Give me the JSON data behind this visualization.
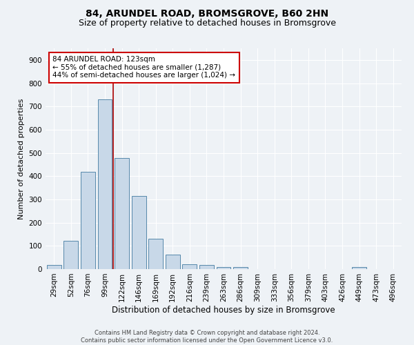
{
  "title1": "84, ARUNDEL ROAD, BROMSGROVE, B60 2HN",
  "title2": "Size of property relative to detached houses in Bromsgrove",
  "xlabel": "Distribution of detached houses by size in Bromsgrove",
  "ylabel": "Number of detached properties",
  "categories": [
    "29sqm",
    "52sqm",
    "76sqm",
    "99sqm",
    "122sqm",
    "146sqm",
    "169sqm",
    "192sqm",
    "216sqm",
    "239sqm",
    "263sqm",
    "286sqm",
    "309sqm",
    "333sqm",
    "356sqm",
    "379sqm",
    "403sqm",
    "426sqm",
    "449sqm",
    "473sqm",
    "496sqm"
  ],
  "values": [
    18,
    122,
    418,
    730,
    478,
    315,
    130,
    63,
    22,
    18,
    10,
    8,
    0,
    0,
    0,
    0,
    0,
    0,
    8,
    0,
    0
  ],
  "bar_color": "#c8d8e8",
  "bar_edge_color": "#5588aa",
  "vline_x_idx": 4,
  "vline_color": "#aa0000",
  "annotation_line1": "84 ARUNDEL ROAD: 123sqm",
  "annotation_line2": "← 55% of detached houses are smaller (1,287)",
  "annotation_line3": "44% of semi-detached houses are larger (1,024) →",
  "annotation_box_color": "#ffffff",
  "annotation_box_edge": "#cc0000",
  "ylim": [
    0,
    950
  ],
  "yticks": [
    0,
    100,
    200,
    300,
    400,
    500,
    600,
    700,
    800,
    900
  ],
  "footer1": "Contains HM Land Registry data © Crown copyright and database right 2024.",
  "footer2": "Contains public sector information licensed under the Open Government Licence v3.0.",
  "bg_color": "#eef2f6",
  "plot_bg_color": "#eef2f6",
  "grid_color": "#ffffff",
  "title1_fontsize": 10,
  "title2_fontsize": 9,
  "xlabel_fontsize": 8.5,
  "ylabel_fontsize": 8,
  "tick_fontsize": 7.5,
  "annotation_fontsize": 7.5
}
